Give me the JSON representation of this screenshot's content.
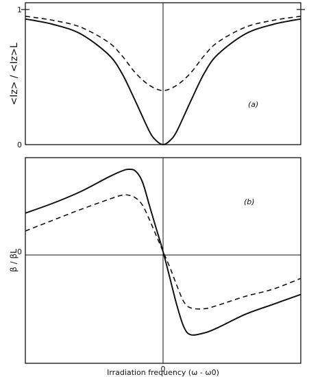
{
  "chart_data": [
    {
      "type": "line",
      "panel_label": "(a)",
      "ylabel": "<Iz> / <Iz>L",
      "xlabel": "",
      "ylim": [
        0,
        1.05
      ],
      "xlim": [
        -1,
        1
      ],
      "y_ticks": [
        {
          "value": 1,
          "label": "1"
        },
        {
          "value": 0,
          "label": "0"
        }
      ],
      "series": [
        {
          "style": "solid",
          "x": [
            -1,
            -0.8,
            -0.6,
            -0.4,
            -0.3,
            -0.2,
            -0.1,
            -0.05,
            0,
            0.05,
            0.1,
            0.2,
            0.3,
            0.4,
            0.6,
            0.8,
            1
          ],
          "y": [
            0.93,
            0.89,
            0.82,
            0.67,
            0.53,
            0.32,
            0.1,
            0.03,
            0,
            0.03,
            0.1,
            0.32,
            0.53,
            0.67,
            0.82,
            0.89,
            0.93
          ]
        },
        {
          "style": "dashed",
          "x": [
            -1,
            -0.8,
            -0.6,
            -0.4,
            -0.3,
            -0.2,
            -0.1,
            0,
            0.1,
            0.2,
            0.3,
            0.4,
            0.6,
            0.8,
            1
          ],
          "y": [
            0.95,
            0.92,
            0.87,
            0.76,
            0.66,
            0.53,
            0.44,
            0.4,
            0.44,
            0.53,
            0.66,
            0.76,
            0.87,
            0.92,
            0.95
          ]
        }
      ]
    },
    {
      "type": "line",
      "panel_label": "(b)",
      "ylabel": "β / βL",
      "xlabel": "Irradiation  frequency  (ω - ω0)",
      "x_ticks": [
        {
          "value": 0,
          "label": "0"
        }
      ],
      "y_ticks": [
        {
          "value": 0,
          "label": "0"
        }
      ],
      "ylim": [
        -1.25,
        1.05
      ],
      "xlim": [
        -1,
        1
      ],
      "series": [
        {
          "style": "solid",
          "x": [
            -1,
            -0.8,
            -0.6,
            -0.4,
            -0.3,
            -0.25,
            -0.2,
            -0.15,
            -0.1,
            -0.05,
            0,
            0.05,
            0.1,
            0.15,
            0.2,
            0.3,
            0.4,
            0.6,
            0.8,
            1
          ],
          "y": [
            0.43,
            0.54,
            0.67,
            0.83,
            0.9,
            0.92,
            0.9,
            0.78,
            0.52,
            0.26,
            0,
            -0.3,
            -0.6,
            -0.84,
            -0.93,
            -0.91,
            -0.85,
            -0.7,
            -0.59,
            -0.48
          ]
        },
        {
          "style": "dashed",
          "x": [
            -1,
            -0.8,
            -0.6,
            -0.4,
            -0.3,
            -0.25,
            -0.2,
            -0.15,
            -0.1,
            -0.05,
            0,
            0.05,
            0.1,
            0.15,
            0.2,
            0.3,
            0.4,
            0.6,
            0.8,
            1
          ],
          "y": [
            0.23,
            0.35,
            0.47,
            0.58,
            0.63,
            0.63,
            0.6,
            0.52,
            0.36,
            0.18,
            0,
            -0.18,
            -0.38,
            -0.56,
            -0.63,
            -0.64,
            -0.6,
            -0.5,
            -0.42,
            -0.3
          ]
        }
      ]
    }
  ]
}
